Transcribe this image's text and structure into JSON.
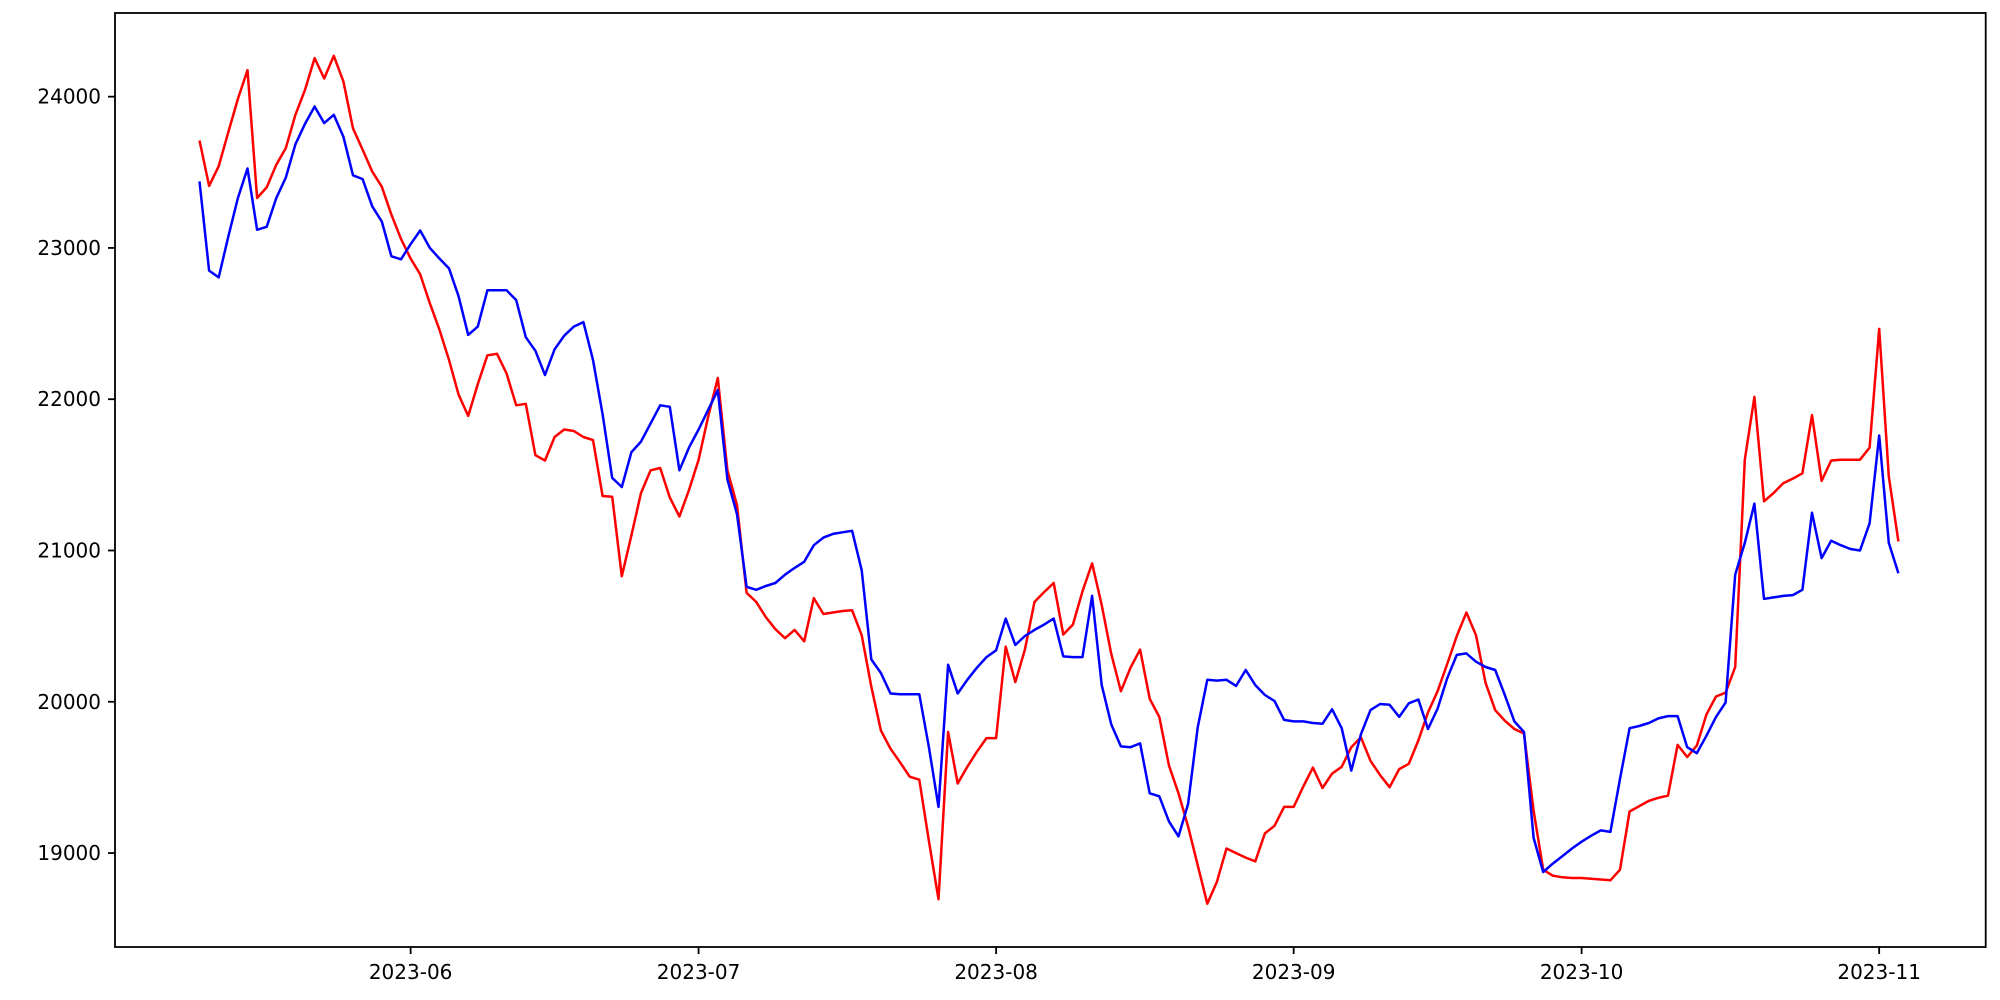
{
  "chart_data": {
    "type": "line",
    "title": "",
    "xlabel": "",
    "ylabel": "",
    "start_date": "2023-05-10",
    "frequency": "daily",
    "grid": false,
    "legend": "none",
    "background_color": "#ffffff",
    "axis_color": "#000000",
    "xlim_days": [
      -8.8,
      186.1
    ],
    "ylim": [
      18379,
      24553
    ],
    "x_ticks": [
      {
        "label": "2023-06",
        "day_index": 22
      },
      {
        "label": "2023-07",
        "day_index": 52
      },
      {
        "label": "2023-08",
        "day_index": 83
      },
      {
        "label": "2023-09",
        "day_index": 114
      },
      {
        "label": "2023-10",
        "day_index": 144
      },
      {
        "label": "2023-11",
        "day_index": 175
      }
    ],
    "y_ticks": [
      {
        "label": "19000",
        "value": 19000
      },
      {
        "label": "20000",
        "value": 20000
      },
      {
        "label": "21000",
        "value": 21000
      },
      {
        "label": "22000",
        "value": 22000
      },
      {
        "label": "23000",
        "value": 23000
      },
      {
        "label": "24000",
        "value": 24000
      }
    ],
    "series": [
      {
        "name": "red-series",
        "color": "#ff0000",
        "values": [
          23710,
          23410,
          23540,
          23765,
          23985,
          24175,
          23330,
          23400,
          23550,
          23660,
          23880,
          24045,
          24255,
          24120,
          24270,
          24100,
          23790,
          23650,
          23505,
          23405,
          23220,
          23060,
          22930,
          22825,
          22635,
          22460,
          22260,
          22030,
          21890,
          22100,
          22290,
          22300,
          22170,
          21960,
          21970,
          21630,
          21595,
          21750,
          21800,
          21790,
          21750,
          21730,
          21360,
          21355,
          20830,
          21100,
          21380,
          21530,
          21545,
          21350,
          21225,
          21400,
          21600,
          21885,
          22140,
          21530,
          21300,
          20720,
          20660,
          20560,
          20480,
          20420,
          20475,
          20400,
          20685,
          20580,
          20590,
          20600,
          20605,
          20440,
          20100,
          19810,
          19690,
          19600,
          19505,
          19485,
          19080,
          18695,
          19800,
          19460,
          19570,
          19670,
          19760,
          19760,
          20365,
          20130,
          20345,
          20660,
          20725,
          20785,
          20445,
          20510,
          20730,
          20915,
          20640,
          20315,
          20070,
          20225,
          20345,
          20020,
          19900,
          19580,
          19395,
          19175,
          18920,
          18665,
          18810,
          19030,
          19000,
          18970,
          18945,
          19130,
          19180,
          19305,
          19305,
          19440,
          19565,
          19430,
          19525,
          19570,
          19700,
          19765,
          19610,
          19515,
          19435,
          19555,
          19590,
          19745,
          19930,
          20070,
          20250,
          20435,
          20590,
          20440,
          20125,
          19945,
          19875,
          19820,
          19790,
          19280,
          18890,
          18850,
          18840,
          18835,
          18835,
          18830,
          18825,
          18820,
          18890,
          19275,
          19310,
          19345,
          19365,
          19380,
          19715,
          19635,
          19710,
          19915,
          20035,
          20060,
          20230,
          21600,
          22015,
          21325,
          21380,
          21445,
          21475,
          21510,
          21895,
          21460,
          21595,
          21600,
          21600,
          21600,
          21680,
          22465,
          21490,
          21060
        ]
      },
      {
        "name": "blue-series",
        "color": "#0000ff",
        "values": [
          23440,
          22850,
          22805,
          23075,
          23330,
          23525,
          23120,
          23140,
          23330,
          23465,
          23685,
          23820,
          23935,
          23825,
          23880,
          23735,
          23480,
          23455,
          23275,
          23175,
          22945,
          22925,
          23025,
          23115,
          23000,
          22930,
          22865,
          22680,
          22425,
          22480,
          22720,
          22720,
          22720,
          22655,
          22410,
          22320,
          22160,
          22330,
          22420,
          22480,
          22510,
          22260,
          21900,
          21480,
          21420,
          21650,
          21720,
          21840,
          21960,
          21950,
          21530,
          21680,
          21800,
          21930,
          22060,
          21470,
          21240,
          20760,
          20740,
          20765,
          20785,
          20840,
          20885,
          20925,
          21035,
          21085,
          21110,
          21120,
          21130,
          20870,
          20280,
          20190,
          20055,
          20050,
          20050,
          20050,
          19700,
          19305,
          20245,
          20055,
          20145,
          20225,
          20295,
          20340,
          20550,
          20375,
          20435,
          20475,
          20510,
          20550,
          20300,
          20295,
          20295,
          20700,
          20110,
          19850,
          19705,
          19700,
          19725,
          19395,
          19375,
          19210,
          19110,
          19325,
          19830,
          20145,
          20140,
          20145,
          20105,
          20210,
          20110,
          20045,
          20005,
          19880,
          19870,
          19870,
          19860,
          19855,
          19950,
          19825,
          19545,
          19785,
          19945,
          19985,
          19980,
          19900,
          19990,
          20015,
          19820,
          19955,
          20155,
          20310,
          20320,
          20265,
          20230,
          20210,
          20045,
          19870,
          19800,
          19100,
          18875,
          18930,
          18980,
          19030,
          19075,
          19115,
          19150,
          19140,
          19490,
          19825,
          19840,
          19860,
          19890,
          19905,
          19905,
          19700,
          19660,
          19775,
          19900,
          19995,
          20840,
          21050,
          21310,
          20680,
          20690,
          20700,
          20705,
          20740,
          21250,
          20950,
          21065,
          21035,
          21010,
          21000,
          21180,
          21760,
          21050,
          20850
        ]
      }
    ]
  }
}
